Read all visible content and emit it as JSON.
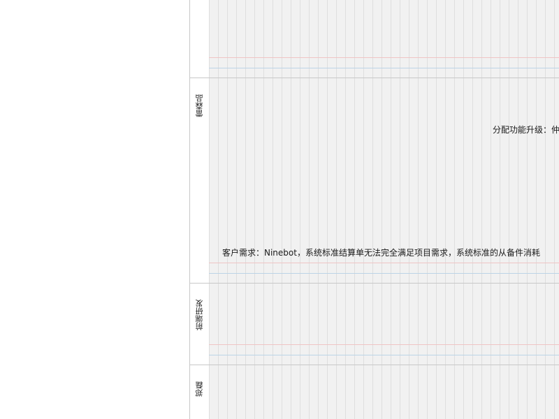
{
  "lanes": [
    {
      "label": ""
    },
    {
      "label": "雷森品"
    },
    {
      "label": "前端研发"
    },
    {
      "label": "郑磊"
    }
  ],
  "tasks": [
    {
      "text": "分配功能升级：仲"
    },
    {
      "text": "客户需求：Ninebot，系统标准结算单无法完全满足项目需求，系统标准的从备件消耗"
    }
  ],
  "colors": {
    "grid_background": "#f1f1f1",
    "grid_line": "#dedede",
    "lane_divider": "#c8c8c8",
    "red_marker": "#efc4c4",
    "blue_marker": "#bcd4e6"
  }
}
